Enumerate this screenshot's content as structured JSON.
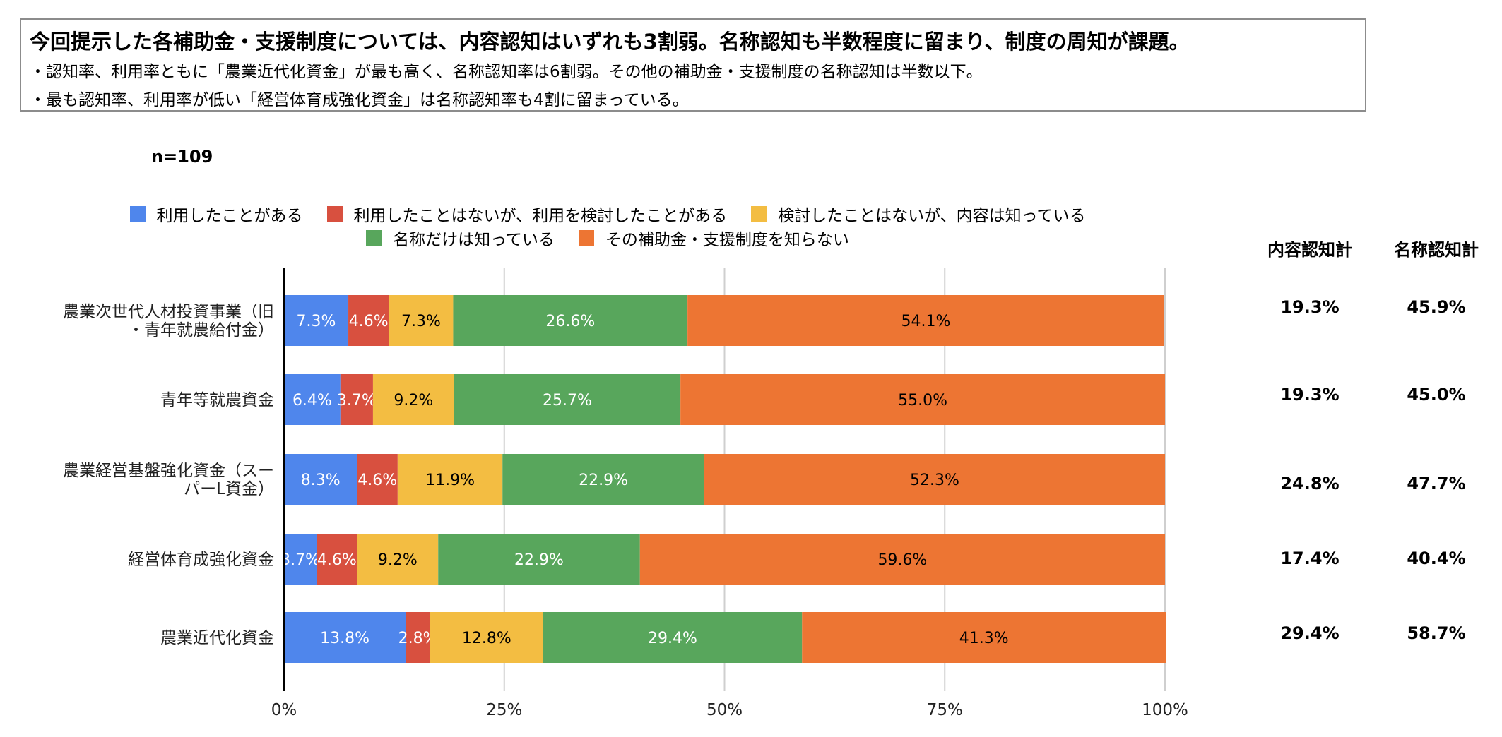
{
  "summary": {
    "headline": "今回提示した各補助金・支援制度については、内容認知はいずれも3割弱。名称認知も半数程度に留まり、制度の周知が課題。",
    "bullets": [
      "・認知率、利用率ともに「農業近代化資金」が最も高く、名称認知率は6割弱。その他の補助金・支援制度の名称認知は半数以下。",
      "・最も認知率、利用率が低い「経営体育成強化資金」は名称認知率も4割に留まっている。"
    ]
  },
  "chart_data": {
    "type": "bar",
    "orientation": "horizontal",
    "stacked": true,
    "percent_stacked": true,
    "sample_note": "n=109",
    "categories": [
      [
        "農業次世代人材投資事業（旧",
        "・青年就農給付金）"
      ],
      [
        "青年等就農資金"
      ],
      [
        "農業経営基盤強化資金（スー",
        "パーL資金）"
      ],
      [
        "経営体育成強化資金"
      ],
      [
        "農業近代化資金"
      ]
    ],
    "series": [
      {
        "name": "利用したことがある",
        "color": "#4f86ec",
        "values": [
          7.3,
          6.4,
          8.3,
          3.7,
          13.8
        ],
        "labels": [
          "7.3%",
          "6.4%",
          "8.3%",
          "3.7%",
          "13.8%"
        ],
        "label_color": "#ffffff"
      },
      {
        "name": "利用したことはないが、利用を検討したことがある",
        "color": "#d8503f",
        "values": [
          4.6,
          3.7,
          4.6,
          4.6,
          2.8
        ],
        "labels": [
          "4.6%",
          "3.7%",
          "4.6%",
          "4.6%",
          "2.8%"
        ],
        "label_color": "#ffffff"
      },
      {
        "name": "検討したことはないが、内容は知っている",
        "color": "#f3bd42",
        "values": [
          7.3,
          9.2,
          11.9,
          9.2,
          12.8
        ],
        "labels": [
          "7.3%",
          "9.2%",
          "11.9%",
          "9.2%",
          "12.8%"
        ],
        "label_color": "#000000"
      },
      {
        "name": "名称だけは知っている",
        "color": "#58a65c",
        "values": [
          26.6,
          25.7,
          22.9,
          22.9,
          29.4
        ],
        "labels": [
          "26.6%",
          "25.7%",
          "22.9%",
          "22.9%",
          "29.4%"
        ],
        "label_color": "#ffffff"
      },
      {
        "name": "その補助金・支援制度を知らない",
        "color": "#ed7533",
        "values": [
          54.1,
          55.0,
          52.3,
          59.6,
          41.3
        ],
        "labels": [
          "54.1%",
          "55.0%",
          "52.3%",
          "59.6%",
          "41.3%"
        ],
        "label_color": "#000000"
      }
    ],
    "xlim": [
      0,
      100
    ],
    "xticks": [
      "0%",
      "25%",
      "50%",
      "75%",
      "100%"
    ],
    "grid": true,
    "legend_position": "top"
  },
  "totals": {
    "headers": [
      "内容認知計",
      "名称認知計"
    ],
    "content_awareness": [
      "19.3%",
      "19.3%",
      "24.8%",
      "17.4%",
      "29.4%"
    ],
    "name_awareness": [
      "45.9%",
      "45.0%",
      "47.7%",
      "40.4%",
      "58.7%"
    ]
  }
}
